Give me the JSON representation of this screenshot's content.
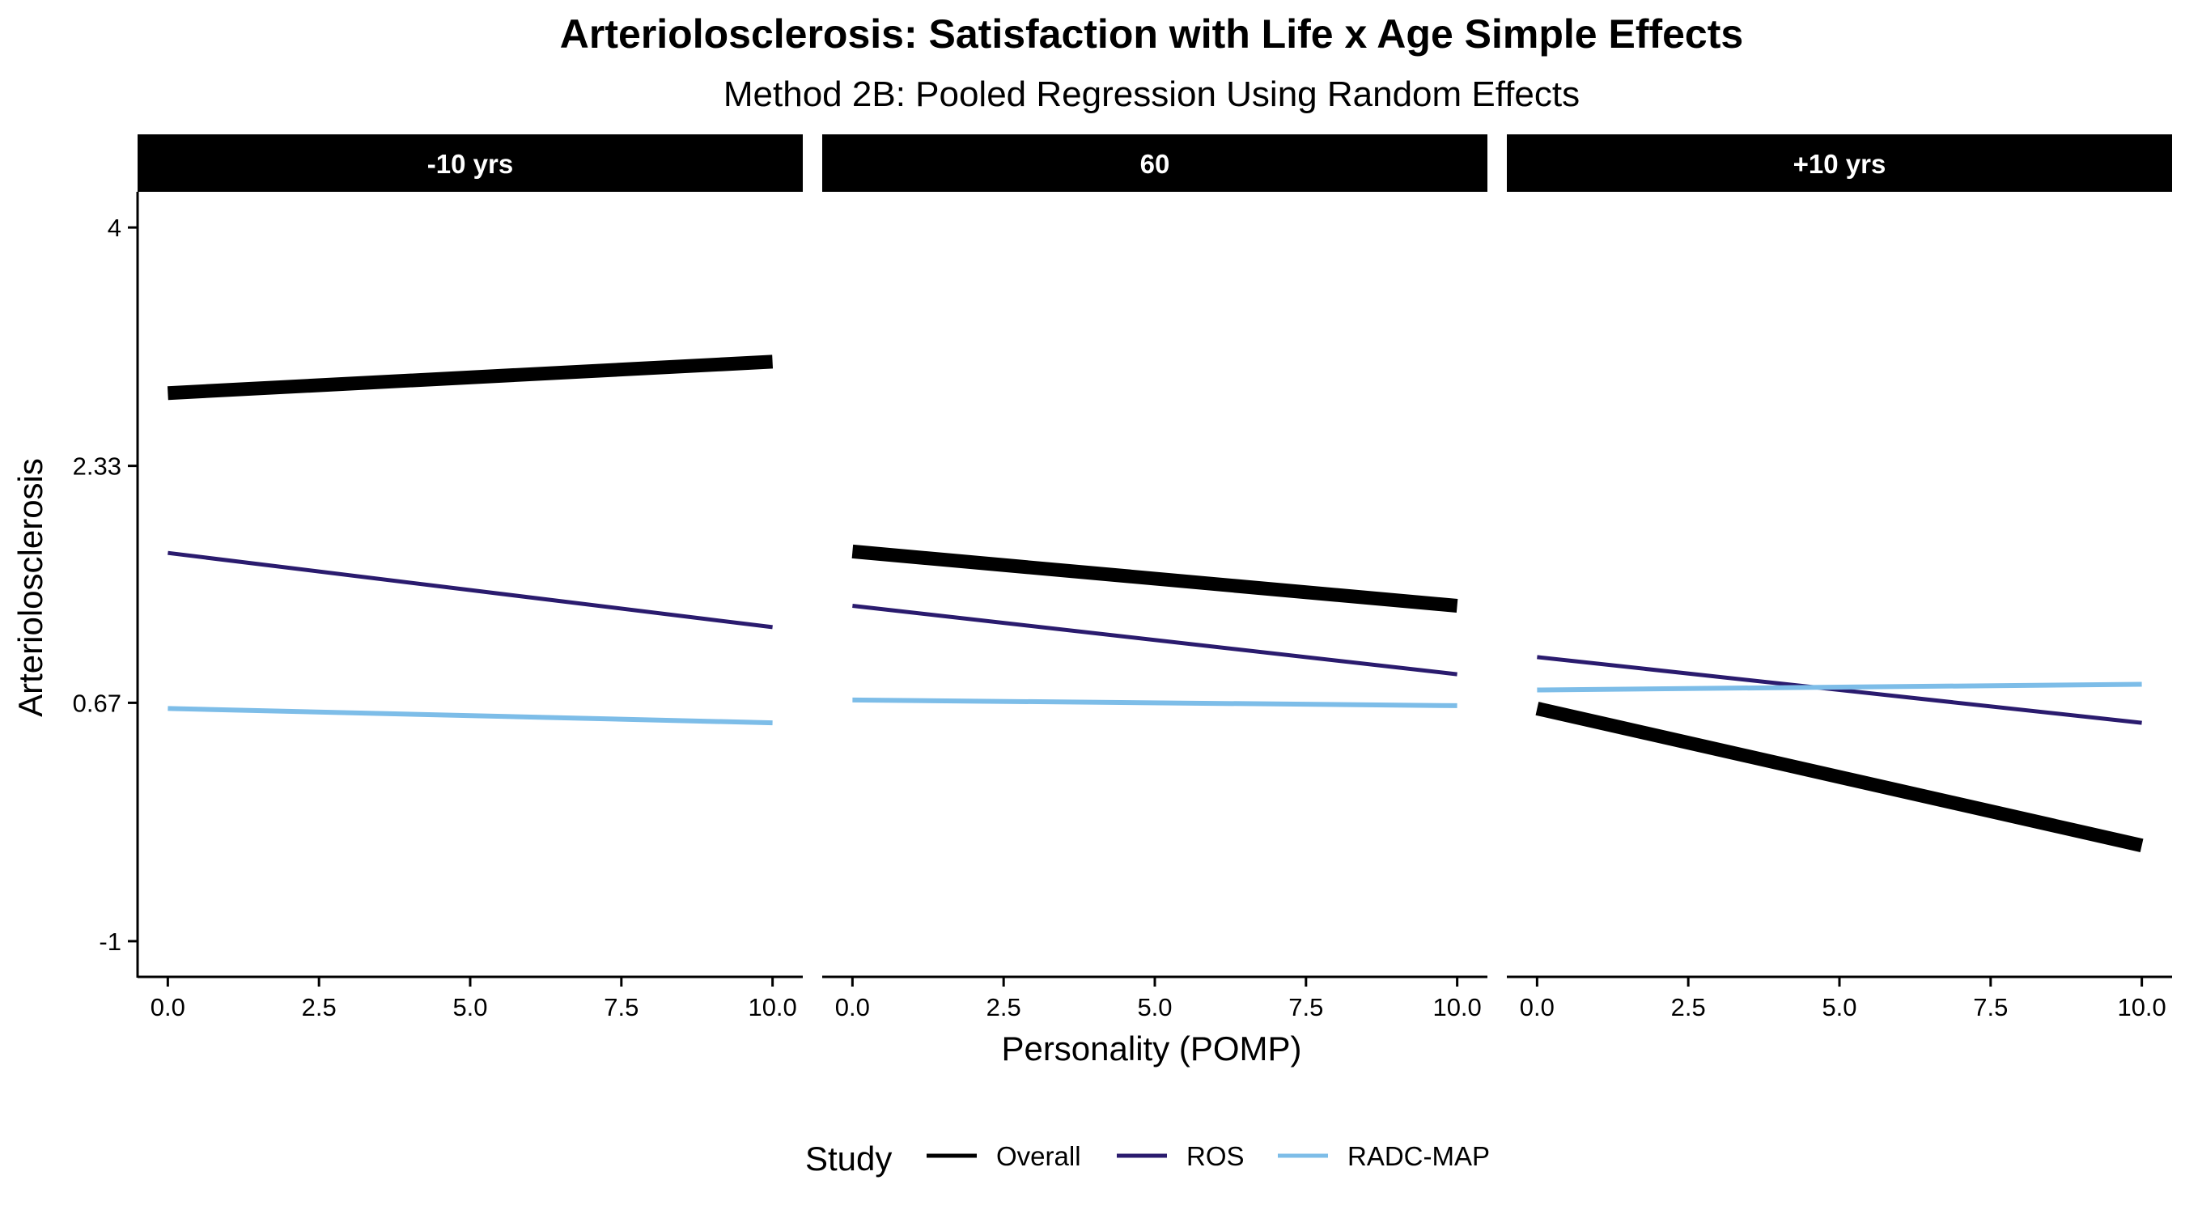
{
  "chart_data": {
    "type": "line",
    "title": "Arteriolosclerosis: Satisfaction with Life x Age Simple Effects",
    "subtitle": "Method 2B: Pooled Regression Using Random Effects",
    "xlabel": "Personality (POMP)",
    "ylabel": "Arteriolosclerosis",
    "xlim": [
      -0.5,
      10.5
    ],
    "ylim": [
      -1.25,
      4.25
    ],
    "x_ticks": [
      "0.0",
      "2.5",
      "5.0",
      "7.5",
      "10.0"
    ],
    "x_tick_values": [
      0,
      2.5,
      5,
      7.5,
      10
    ],
    "y_ticks": [
      "-1",
      "0.67",
      "2.33",
      "4"
    ],
    "y_tick_values": [
      -1,
      0.67,
      2.33,
      4
    ],
    "grid": false,
    "legend": {
      "title": "Study",
      "position": "bottom",
      "entries": [
        "Overall",
        "ROS",
        "RADC-MAP"
      ]
    },
    "series_colors": {
      "Overall": "#000000",
      "ROS": "#2A1B6E",
      "RADC-MAP": "#7DBDE8"
    },
    "panels": [
      {
        "label": "-10 yrs",
        "series": [
          {
            "name": "Overall",
            "x": [
              0,
              10
            ],
            "y": [
              2.84,
              3.06
            ]
          },
          {
            "name": "ROS",
            "x": [
              0,
              10
            ],
            "y": [
              1.72,
              1.2
            ]
          },
          {
            "name": "RADC-MAP",
            "x": [
              0,
              10
            ],
            "y": [
              0.63,
              0.53
            ]
          }
        ]
      },
      {
        "label": "60",
        "series": [
          {
            "name": "Overall",
            "x": [
              0,
              10
            ],
            "y": [
              1.73,
              1.35
            ]
          },
          {
            "name": "ROS",
            "x": [
              0,
              10
            ],
            "y": [
              1.35,
              0.87
            ]
          },
          {
            "name": "RADC-MAP",
            "x": [
              0,
              10
            ],
            "y": [
              0.69,
              0.65
            ]
          }
        ]
      },
      {
        "label": "+10 yrs",
        "series": [
          {
            "name": "Overall",
            "x": [
              0,
              10
            ],
            "y": [
              0.63,
              -0.33
            ]
          },
          {
            "name": "ROS",
            "x": [
              0,
              10
            ],
            "y": [
              0.99,
              0.53
            ]
          },
          {
            "name": "RADC-MAP",
            "x": [
              0,
              10
            ],
            "y": [
              0.76,
              0.8
            ]
          }
        ]
      }
    ]
  }
}
